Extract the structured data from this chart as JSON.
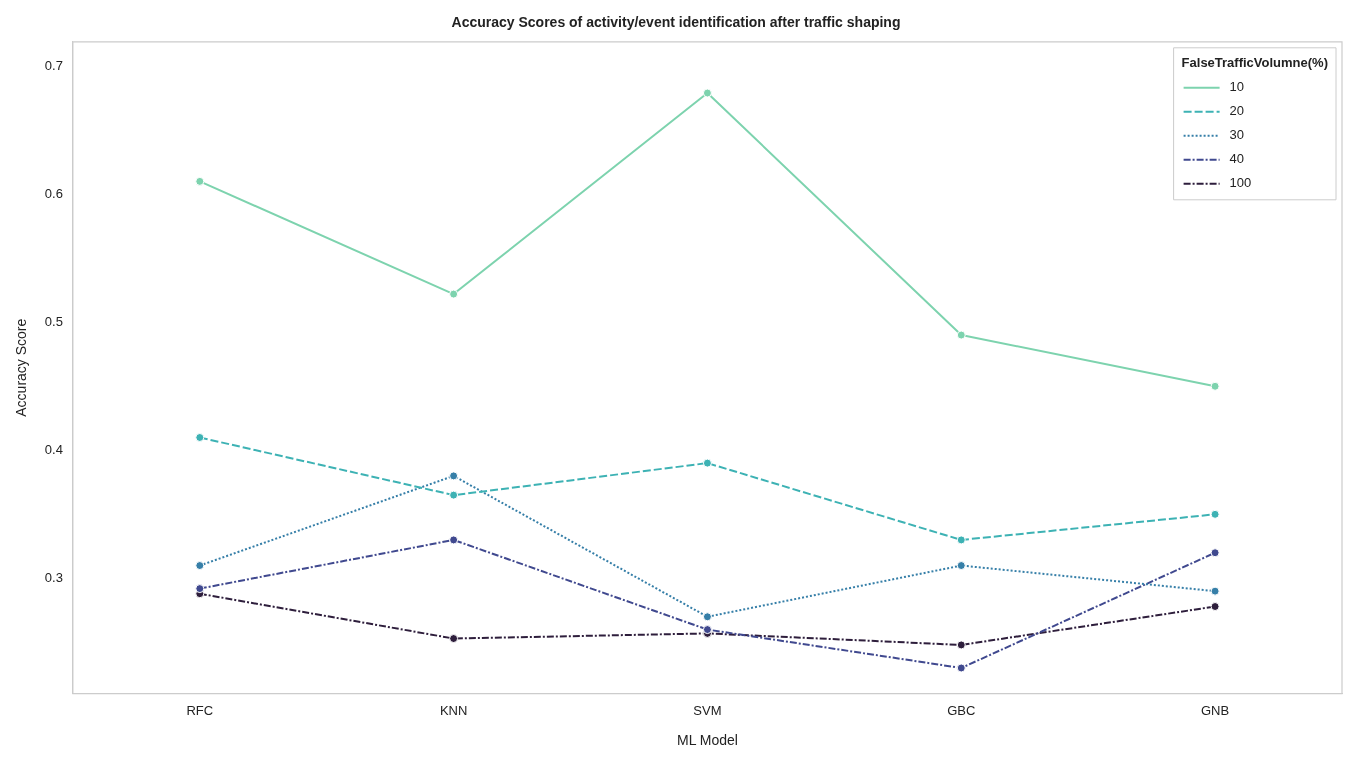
{
  "chart_data": {
    "type": "line",
    "title": "Accuracy Scores of activity/event identification after traffic shaping",
    "xlabel": "ML Model",
    "ylabel": "Accuracy Score",
    "legend_title": "FalseTrafficVolumne(%)",
    "categories": [
      "RFC",
      "KNN",
      "SVM",
      "GBC",
      "GNB"
    ],
    "series": [
      {
        "name": "10",
        "color": "#7dd3ae",
        "line_style": "solid",
        "values": [
          0.61,
          0.522,
          0.679,
          0.49,
          0.45
        ]
      },
      {
        "name": "20",
        "color": "#3db2b4",
        "line_style": "dashed",
        "values": [
          0.41,
          0.365,
          0.39,
          0.33,
          0.35
        ]
      },
      {
        "name": "30",
        "color": "#367fa8",
        "line_style": "dotted",
        "values": [
          0.31,
          0.38,
          0.27,
          0.31,
          0.29
        ]
      },
      {
        "name": "40",
        "color": "#40498f",
        "line_style": "dashdot",
        "values": [
          0.292,
          0.33,
          0.26,
          0.23,
          0.32
        ]
      },
      {
        "name": "100",
        "color": "#2e1e3c",
        "line_style": "dashdot",
        "values": [
          0.288,
          0.253,
          0.257,
          0.248,
          0.278
        ]
      }
    ],
    "ylim": [
      0.21,
      0.719
    ],
    "yticks": [
      0.3,
      0.4,
      0.5,
      0.6,
      0.7
    ],
    "grid": false,
    "legend": "top right",
    "marker": "circle"
  }
}
